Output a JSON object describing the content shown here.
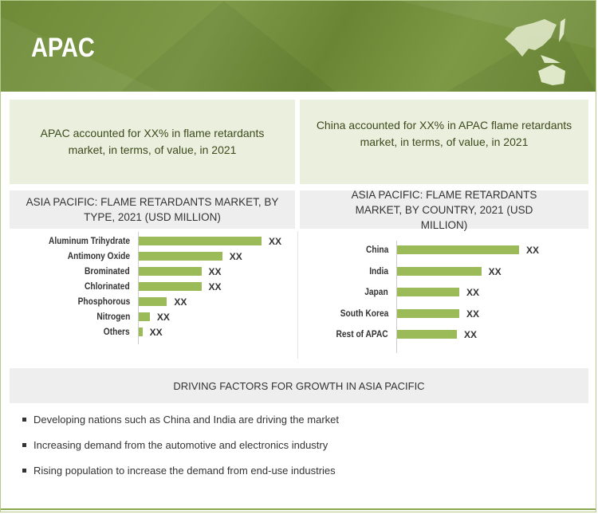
{
  "header": {
    "title": "APAC"
  },
  "info": [
    "APAC accounted for XX% in flame retardants market, in terms, of value, in 2021",
    "China accounted for XX% in APAC flame retardants market, in terms, of value, in 2021"
  ],
  "chart_data": [
    {
      "type": "bar",
      "orientation": "horizontal",
      "title": "ASIA PACIFIC: FLAME RETARDANTS MARKET, BY TYPE, 2021 (USD MILLION)",
      "categories": [
        "Aluminum Trihydrate",
        "Antimony Oxide",
        "Brominated",
        "Chlorinated",
        "Phosphorous",
        "Nitrogen",
        "Others"
      ],
      "values": [
        100,
        68,
        51,
        51,
        23,
        9,
        3
      ],
      "value_labels": [
        "XX",
        "XX",
        "XX",
        "XX",
        "XX",
        "XX",
        "XX"
      ],
      "note": "relative bar lengths; values undisclosed"
    },
    {
      "type": "bar",
      "orientation": "horizontal",
      "title": "ASIA PACIFIC: FLAME RETARDANTS MARKET, BY COUNTRY, 2021 (USD MILLION)",
      "categories": [
        "China",
        "India",
        "Japan",
        "South Korea",
        "Rest of APAC"
      ],
      "values": [
        100,
        69,
        51,
        51,
        49
      ],
      "value_labels": [
        "XX",
        "XX",
        "XX",
        "XX",
        "XX"
      ],
      "note": "relative bar lengths; values undisclosed"
    }
  ],
  "drivers": {
    "title": "DRIVING FACTORS FOR GROWTH IN ASIA PACIFIC",
    "items": [
      "Developing nations such as China and India are driving the market",
      "Increasing demand from the automotive and electronics industry",
      "Rising population to increase the demand from end-use industries"
    ]
  }
}
